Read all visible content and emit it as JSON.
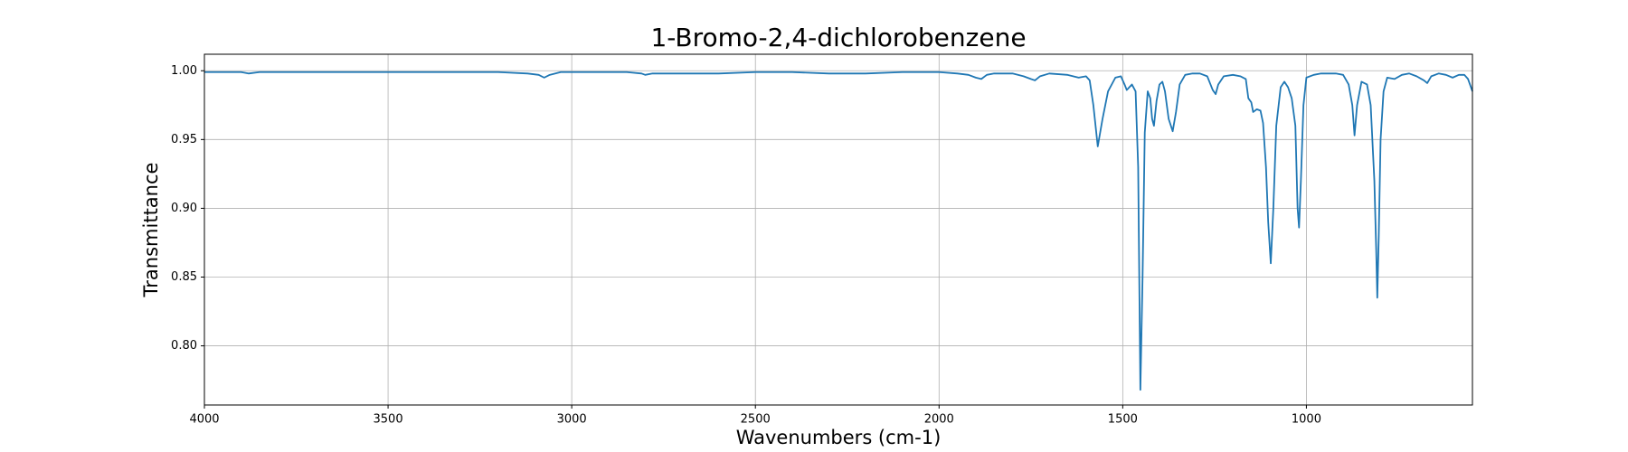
{
  "chart_data": {
    "type": "line",
    "title": "1-Bromo-2,4-dichlorobenzene",
    "x_label": "Wavenumbers (cm-1)",
    "y_label": "Transmittance",
    "xlim": [
      4000,
      548
    ],
    "xticks": [
      4000,
      3500,
      3000,
      2500,
      2000,
      1500,
      1000
    ],
    "ylim": [
      0.757,
      1.012
    ],
    "yticks": [
      {
        "value": 0.8,
        "label": "0.80"
      },
      0.85,
      {
        "value": 0.9,
        "label": "0.90"
      },
      0.95,
      {
        "value": 1,
        "label": "1.00"
      }
    ],
    "grid": true,
    "x": [
      4000,
      3950,
      3900,
      3880,
      3850,
      3800,
      3700,
      3600,
      3500,
      3400,
      3300,
      3200,
      3120,
      3090,
      3075,
      3060,
      3030,
      3000,
      2900,
      2850,
      2810,
      2800,
      2780,
      2700,
      2600,
      2500,
      2400,
      2300,
      2200,
      2100,
      2000,
      1950,
      1920,
      1900,
      1885,
      1870,
      1850,
      1800,
      1770,
      1750,
      1739,
      1725,
      1700,
      1650,
      1620,
      1600,
      1590,
      1580,
      1568,
      1555,
      1540,
      1520,
      1505,
      1495,
      1489,
      1482,
      1475,
      1465,
      1458,
      1452,
      1446,
      1440,
      1432,
      1425,
      1420,
      1415,
      1408,
      1400,
      1392,
      1385,
      1375,
      1364,
      1355,
      1345,
      1330,
      1310,
      1290,
      1270,
      1255,
      1247,
      1240,
      1225,
      1200,
      1180,
      1165,
      1158,
      1150,
      1145,
      1135,
      1125,
      1118,
      1110,
      1104,
      1097,
      1090,
      1082,
      1070,
      1060,
      1050,
      1040,
      1030,
      1024,
      1020,
      1015,
      1008,
      1000,
      980,
      960,
      940,
      920,
      900,
      885,
      875,
      869,
      862,
      850,
      835,
      825,
      815,
      810,
      807,
      803,
      798,
      790,
      780,
      760,
      740,
      720,
      700,
      680,
      671,
      660,
      640,
      620,
      602,
      585,
      570,
      560,
      548
    ],
    "series": [
      {
        "color": "#1f77b4",
        "values": [
          0.999,
          0.999,
          0.999,
          0.998,
          0.999,
          0.999,
          0.999,
          0.999,
          0.999,
          0.999,
          0.999,
          0.999,
          0.998,
          0.997,
          0.995,
          0.997,
          0.999,
          0.999,
          0.999,
          0.999,
          0.998,
          0.997,
          0.998,
          0.998,
          0.998,
          0.999,
          0.999,
          0.998,
          0.998,
          0.999,
          0.999,
          0.998,
          0.997,
          0.995,
          0.994,
          0.997,
          0.998,
          0.998,
          0.996,
          0.994,
          0.993,
          0.996,
          0.998,
          0.997,
          0.995,
          0.996,
          0.993,
          0.975,
          0.945,
          0.965,
          0.985,
          0.995,
          0.996,
          0.99,
          0.986,
          0.988,
          0.99,
          0.985,
          0.93,
          0.768,
          0.85,
          0.955,
          0.985,
          0.98,
          0.965,
          0.96,
          0.978,
          0.99,
          0.992,
          0.985,
          0.965,
          0.956,
          0.97,
          0.99,
          0.997,
          0.998,
          0.998,
          0.996,
          0.986,
          0.983,
          0.99,
          0.996,
          0.997,
          0.996,
          0.994,
          0.98,
          0.977,
          0.97,
          0.972,
          0.971,
          0.962,
          0.93,
          0.89,
          0.86,
          0.9,
          0.96,
          0.988,
          0.992,
          0.988,
          0.98,
          0.96,
          0.9,
          0.886,
          0.92,
          0.975,
          0.995,
          0.997,
          0.998,
          0.998,
          0.998,
          0.997,
          0.99,
          0.975,
          0.953,
          0.975,
          0.992,
          0.99,
          0.975,
          0.92,
          0.87,
          0.835,
          0.88,
          0.95,
          0.985,
          0.995,
          0.994,
          0.997,
          0.998,
          0.996,
          0.993,
          0.991,
          0.996,
          0.998,
          0.997,
          0.995,
          0.997,
          0.997,
          0.994,
          0.985
        ]
      }
    ]
  }
}
